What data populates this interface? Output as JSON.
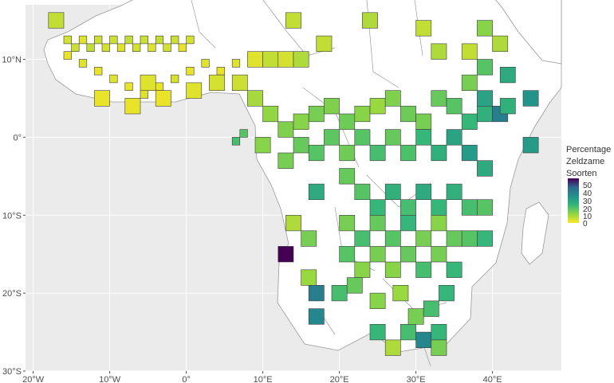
{
  "legend": {
    "title_lines": [
      "Percentage",
      "Zeldzame",
      "Soorten"
    ],
    "ticks": [
      "50",
      "40",
      "30",
      "20",
      "10",
      "0"
    ],
    "range": [
      0,
      55
    ]
  },
  "axes": {
    "x_ticks": [
      {
        "label": "20°W",
        "lon": -20
      },
      {
        "label": "10°W",
        "lon": -10
      },
      {
        "label": "0°",
        "lon": 0
      },
      {
        "label": "10°E",
        "lon": 10
      },
      {
        "label": "20°E",
        "lon": 20
      },
      {
        "label": "30°E",
        "lon": 30
      },
      {
        "label": "40°E",
        "lon": 40
      }
    ],
    "y_ticks": [
      {
        "label": "10°N",
        "lat": 10
      },
      {
        "label": "0°",
        "lat": 0
      },
      {
        "label": "10°S",
        "lat": -10
      },
      {
        "label": "20°S",
        "lat": -20
      },
      {
        "label": "30°S",
        "lat": -30
      }
    ],
    "lon_range": [
      -21,
      49
    ],
    "lat_range": [
      -30,
      17
    ]
  },
  "colors": {
    "background": "#ebebeb",
    "grid": "#ffffff",
    "land": "#ffffff",
    "border": "#9a9a9a"
  },
  "chart_data": {
    "type": "heatmap",
    "description_units": "cells: [lon_min, lat_min, size_deg, percentage]",
    "cells": [
      [
        -18,
        14,
        2,
        6
      ],
      [
        -16,
        12,
        1,
        4
      ],
      [
        -15,
        11,
        1,
        5
      ],
      [
        -14,
        12,
        1,
        3
      ],
      [
        -13,
        11,
        1,
        6
      ],
      [
        -12,
        12,
        1,
        5
      ],
      [
        -11,
        11,
        1,
        4
      ],
      [
        -10,
        12,
        1,
        5
      ],
      [
        -9,
        11,
        1,
        3
      ],
      [
        -8,
        12,
        1,
        6
      ],
      [
        -7,
        11,
        1,
        4
      ],
      [
        -6,
        12,
        1,
        5
      ],
      [
        -5,
        11,
        1,
        3
      ],
      [
        -4,
        12,
        1,
        6
      ],
      [
        -3,
        11,
        1,
        4
      ],
      [
        -2,
        12,
        1,
        5
      ],
      [
        -1,
        11,
        1,
        2
      ],
      [
        0,
        12,
        1,
        4
      ],
      [
        -16,
        10,
        1,
        2
      ],
      [
        -14,
        9,
        1,
        3
      ],
      [
        -12,
        8,
        1,
        2
      ],
      [
        -10,
        7,
        1,
        3
      ],
      [
        -8,
        6,
        1,
        2
      ],
      [
        -6,
        5,
        1,
        3
      ],
      [
        -4,
        6,
        1,
        2
      ],
      [
        -2,
        7,
        1,
        4
      ],
      [
        0,
        8,
        1,
        2
      ],
      [
        2,
        9,
        1,
        3
      ],
      [
        4,
        8,
        1,
        2
      ],
      [
        6,
        9,
        1,
        3
      ],
      [
        -12,
        4,
        2,
        2
      ],
      [
        -8,
        3,
        2,
        2
      ],
      [
        -4,
        4,
        2,
        2
      ],
      [
        0,
        5,
        2,
        3
      ],
      [
        3,
        6,
        2,
        4
      ],
      [
        6,
        6,
        2,
        5
      ],
      [
        8,
        9,
        2,
        3
      ],
      [
        10,
        9,
        2,
        6
      ],
      [
        12,
        9,
        2,
        4
      ],
      [
        14,
        9,
        2,
        8
      ],
      [
        8,
        4,
        2,
        9
      ],
      [
        10,
        2,
        2,
        11
      ],
      [
        12,
        0,
        2,
        13
      ],
      [
        14,
        1,
        2,
        12
      ],
      [
        16,
        2,
        2,
        14
      ],
      [
        18,
        3,
        2,
        13
      ],
      [
        20,
        1,
        2,
        15
      ],
      [
        22,
        2,
        2,
        12
      ],
      [
        24,
        3,
        2,
        10
      ],
      [
        26,
        4,
        2,
        13
      ],
      [
        28,
        2,
        2,
        15
      ],
      [
        30,
        1,
        2,
        14
      ],
      [
        32,
        4,
        2,
        16
      ],
      [
        34,
        3,
        2,
        18
      ],
      [
        36,
        1,
        2,
        22
      ],
      [
        38,
        2,
        2,
        24
      ],
      [
        38,
        4,
        2,
        28
      ],
      [
        40,
        2,
        2,
        38
      ],
      [
        36,
        6,
        2,
        14
      ],
      [
        38,
        8,
        2,
        18
      ],
      [
        41,
        7,
        2,
        26
      ],
      [
        41,
        3,
        2,
        24
      ],
      [
        9,
        -2,
        2,
        12
      ],
      [
        12,
        -4,
        2,
        14
      ],
      [
        14,
        -2,
        2,
        16
      ],
      [
        16,
        -3,
        2,
        18
      ],
      [
        18,
        -1,
        2,
        17
      ],
      [
        20,
        -3,
        2,
        15
      ],
      [
        22,
        -1,
        2,
        18
      ],
      [
        24,
        -3,
        2,
        20
      ],
      [
        26,
        -1,
        2,
        16
      ],
      [
        28,
        -3,
        2,
        19
      ],
      [
        30,
        -1,
        2,
        22
      ],
      [
        32,
        -3,
        2,
        24
      ],
      [
        34,
        -1,
        2,
        28
      ],
      [
        36,
        -3,
        2,
        30
      ],
      [
        38,
        -5,
        2,
        26
      ],
      [
        16,
        -8,
        2,
        26
      ],
      [
        20,
        -6,
        2,
        16
      ],
      [
        22,
        -8,
        2,
        18
      ],
      [
        24,
        -10,
        2,
        22
      ],
      [
        26,
        -8,
        2,
        24
      ],
      [
        28,
        -10,
        2,
        20
      ],
      [
        30,
        -8,
        2,
        26
      ],
      [
        32,
        -10,
        2,
        22
      ],
      [
        34,
        -8,
        2,
        24
      ],
      [
        36,
        -10,
        2,
        20
      ],
      [
        38,
        -10,
        2,
        18
      ],
      [
        20,
        -12,
        2,
        14
      ],
      [
        22,
        -14,
        2,
        20
      ],
      [
        24,
        -12,
        2,
        16
      ],
      [
        26,
        -14,
        2,
        18
      ],
      [
        28,
        -12,
        2,
        22
      ],
      [
        30,
        -14,
        2,
        14
      ],
      [
        32,
        -12,
        2,
        12
      ],
      [
        34,
        -14,
        2,
        16
      ],
      [
        36,
        -14,
        2,
        18
      ],
      [
        38,
        -14,
        2,
        22
      ],
      [
        20,
        -16,
        2,
        18
      ],
      [
        22,
        -18,
        2,
        12
      ],
      [
        24,
        -16,
        2,
        14
      ],
      [
        26,
        -18,
        2,
        12
      ],
      [
        28,
        -16,
        2,
        16
      ],
      [
        30,
        -18,
        2,
        20
      ],
      [
        32,
        -16,
        2,
        14
      ],
      [
        34,
        -18,
        2,
        22
      ],
      [
        13,
        -12,
        2,
        8
      ],
      [
        15,
        -14,
        2,
        14
      ],
      [
        12,
        -16,
        2,
        55
      ],
      [
        15,
        -19,
        2,
        10
      ],
      [
        16,
        -21,
        2,
        38
      ],
      [
        16,
        -24,
        2,
        36
      ],
      [
        19,
        -21,
        2,
        20
      ],
      [
        21,
        -20,
        2,
        16
      ],
      [
        24,
        -22,
        2,
        12
      ],
      [
        27,
        -21,
        2,
        10
      ],
      [
        29,
        -24,
        2,
        14
      ],
      [
        31,
        -23,
        2,
        20
      ],
      [
        33,
        -21,
        2,
        22
      ],
      [
        28,
        -26,
        2,
        20
      ],
      [
        30,
        -27,
        2,
        36
      ],
      [
        32,
        -26,
        2,
        22
      ],
      [
        26,
        -28,
        2,
        8
      ],
      [
        32,
        -28,
        2,
        14
      ],
      [
        24,
        -26,
        2,
        22
      ],
      [
        -6,
        6,
        2,
        3
      ],
      [
        44,
        4,
        2,
        32
      ],
      [
        44,
        -2,
        2,
        30
      ],
      [
        30,
        13,
        2,
        6
      ],
      [
        32,
        10,
        2,
        8
      ],
      [
        36,
        10,
        2,
        6
      ],
      [
        38,
        13,
        2,
        12
      ],
      [
        40,
        11,
        2,
        8
      ],
      [
        23,
        14,
        2,
        8
      ],
      [
        13,
        14,
        2,
        6
      ],
      [
        17,
        11,
        2,
        6
      ],
      [
        7,
        0,
        1,
        18
      ],
      [
        6,
        -1,
        1,
        20
      ]
    ]
  }
}
